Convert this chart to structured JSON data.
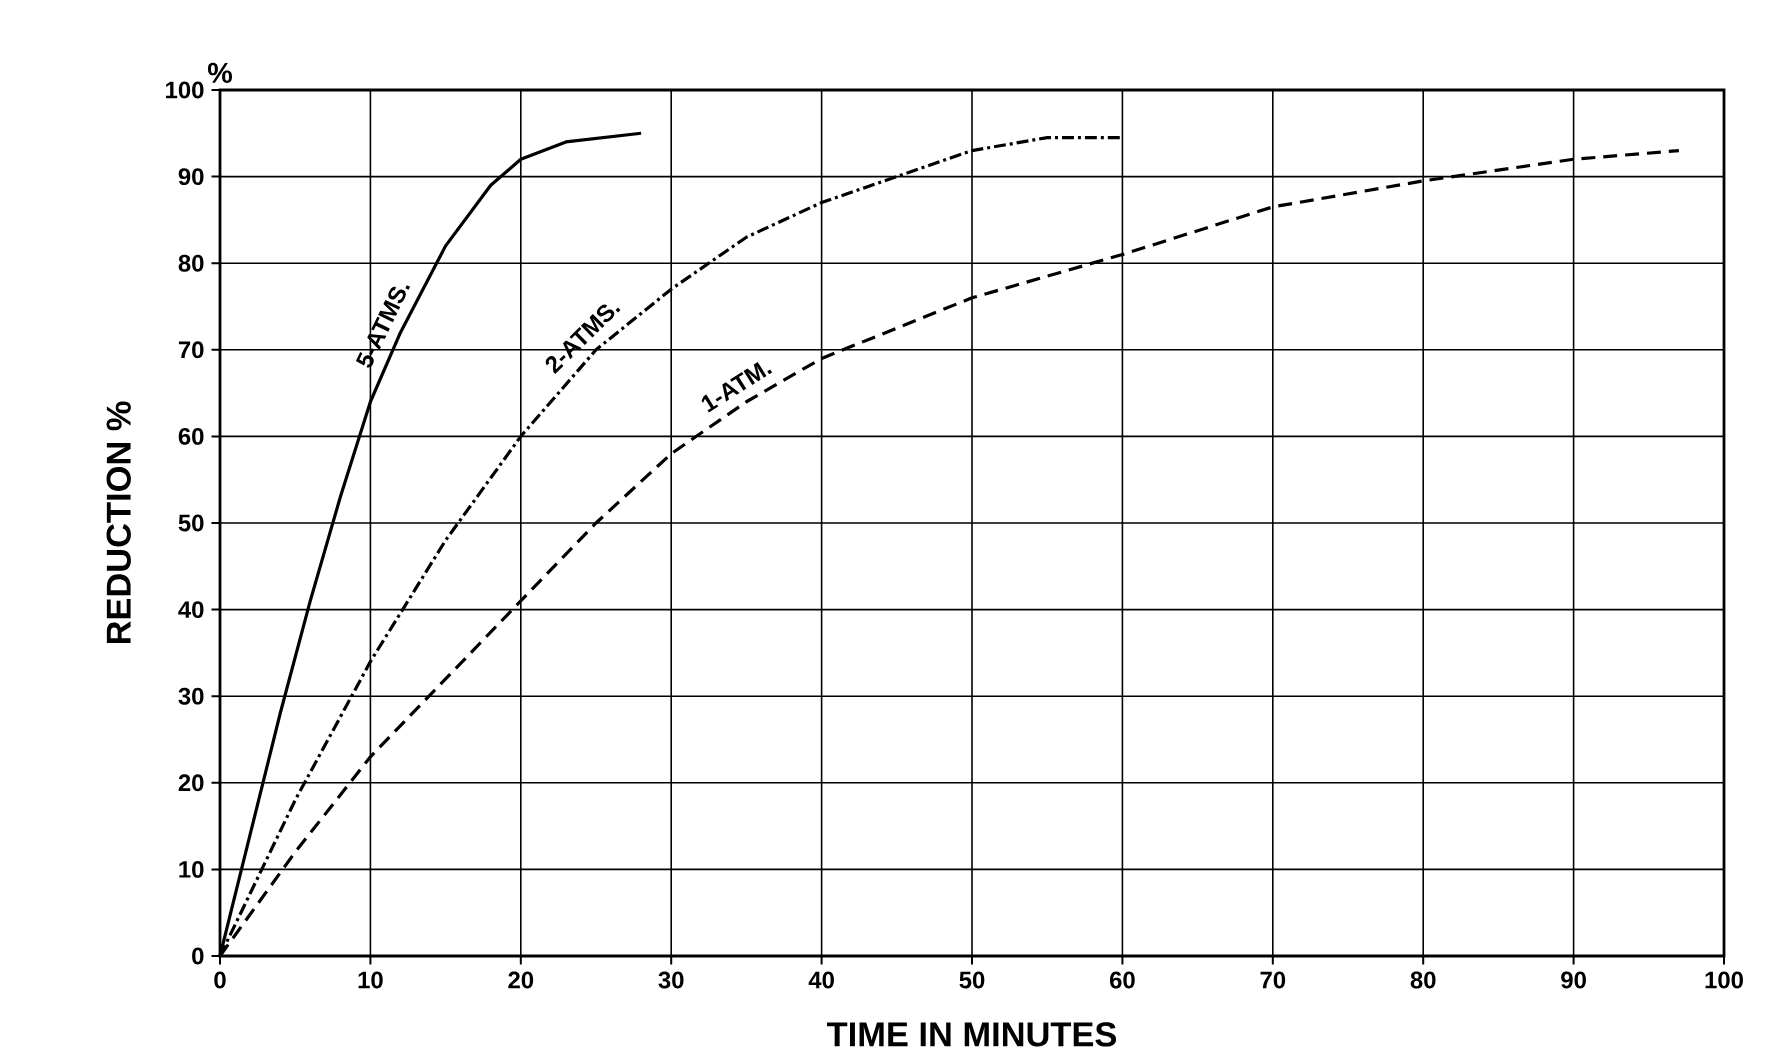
{
  "chart_data": {
    "type": "line",
    "xlabel": "TIME IN MINUTES",
    "ylabel": "REDUCTION %",
    "annotations": [
      "%"
    ],
    "xlim": [
      0,
      100
    ],
    "ylim": [
      0,
      100
    ],
    "xticks": [
      0,
      10,
      20,
      30,
      40,
      50,
      60,
      70,
      80,
      90,
      100
    ],
    "yticks": [
      0,
      10,
      20,
      30,
      40,
      50,
      60,
      70,
      80,
      90,
      100
    ],
    "grid": true,
    "series": [
      {
        "name": "5-ATMS.",
        "color": "#000000",
        "line_style": "solid",
        "x": [
          0,
          2,
          4,
          6,
          8,
          10,
          12,
          15,
          18,
          20,
          23,
          28
        ],
        "values": [
          0,
          14,
          28,
          41,
          53,
          64,
          72,
          82,
          89,
          92,
          94,
          95
        ]
      },
      {
        "name": "2-ATMS.",
        "color": "#000000",
        "line_style": "dashdot",
        "x": [
          0,
          5,
          10,
          15,
          20,
          25,
          30,
          35,
          40,
          45,
          50,
          55,
          60
        ],
        "values": [
          0,
          18,
          34,
          48,
          60,
          70,
          77,
          83,
          87,
          90,
          93,
          94.5,
          94.5
        ]
      },
      {
        "name": "1-ATM.",
        "color": "#000000",
        "line_style": "dashed",
        "x": [
          0,
          5,
          10,
          15,
          20,
          25,
          30,
          35,
          40,
          50,
          60,
          70,
          80,
          90,
          97
        ],
        "values": [
          0,
          12,
          23,
          32,
          41,
          50,
          58,
          64,
          69,
          76,
          81,
          86.5,
          89.5,
          92,
          93
        ]
      }
    ]
  }
}
